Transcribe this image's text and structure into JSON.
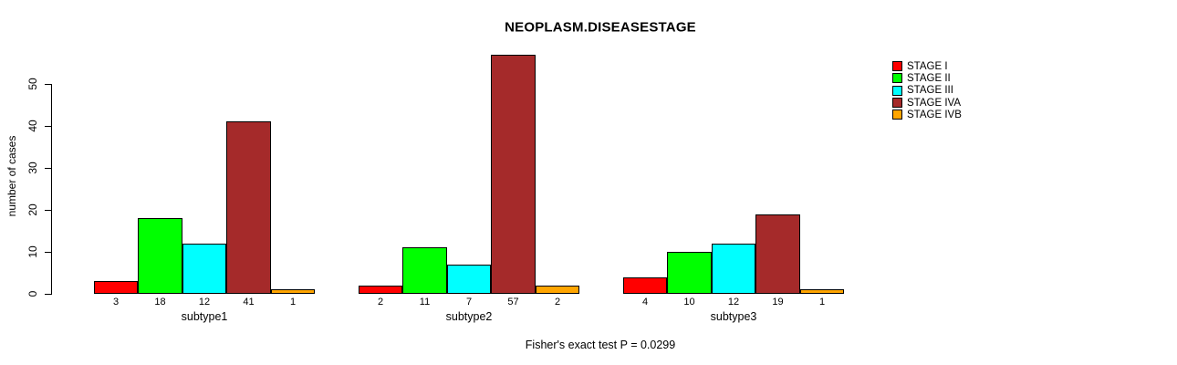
{
  "chart_data": {
    "type": "bar",
    "title": "NEOPLASM.DISEASESTAGE",
    "ylabel": "number of cases",
    "xlabel": "",
    "caption": "Fisher's exact test P = 0.0299",
    "categories": [
      "subtype1",
      "subtype2",
      "subtype3"
    ],
    "series": [
      {
        "name": "STAGE I",
        "color": "#FF0000",
        "values": [
          3,
          2,
          4
        ]
      },
      {
        "name": "STAGE II",
        "color": "#00FF00",
        "values": [
          18,
          11,
          10
        ]
      },
      {
        "name": "STAGE III",
        "color": "#00FFFF",
        "values": [
          12,
          7,
          12
        ]
      },
      {
        "name": "STAGE IVA",
        "color": "#A52A2A",
        "values": [
          41,
          57,
          19
        ]
      },
      {
        "name": "STAGE IVB",
        "color": "#FFA500",
        "values": [
          1,
          2,
          1
        ]
      }
    ],
    "yticks": [
      0,
      10,
      20,
      30,
      40,
      50
    ],
    "ylim": [
      0,
      57
    ],
    "bar_value_labels_shown": true,
    "legend_position": "right",
    "grid": false,
    "background": "#FFFFFF",
    "axis_color": "#000000"
  }
}
